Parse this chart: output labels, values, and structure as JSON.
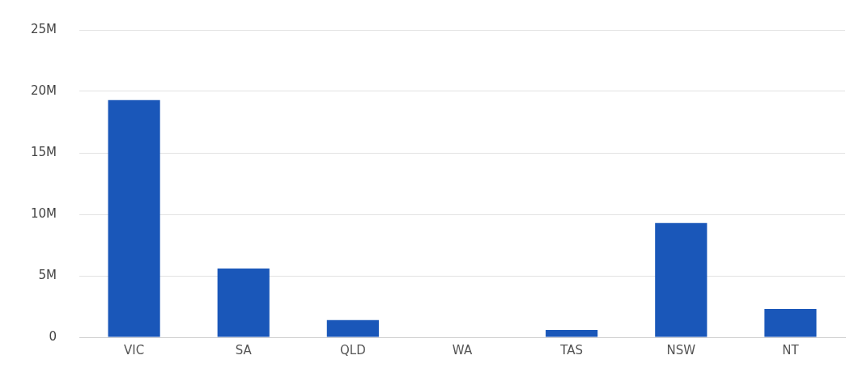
{
  "chart_data": {
    "type": "bar",
    "categories": [
      "VIC",
      "SA",
      "QLD",
      "WA",
      "TAS",
      "NSW",
      "NT"
    ],
    "values": [
      19.3,
      5.6,
      1.4,
      0,
      0.6,
      9.3,
      2.3
    ],
    "color": "#1a57b9",
    "ylim": [
      0,
      25
    ],
    "yticks": [
      {
        "value": 0,
        "label": "0"
      },
      {
        "value": 5,
        "label": "5M"
      },
      {
        "value": 10,
        "label": "10M"
      },
      {
        "value": 15,
        "label": "15M"
      },
      {
        "value": 20,
        "label": "20M"
      },
      {
        "value": 25,
        "label": "25M"
      }
    ],
    "grid": "y"
  }
}
